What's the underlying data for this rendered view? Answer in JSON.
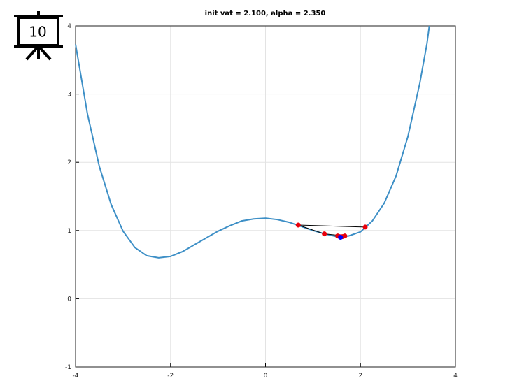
{
  "badge": "10",
  "chart_data": {
    "type": "line",
    "title": "init vat = 2.100, alpha = 2.350",
    "xlim": [
      -4,
      4
    ],
    "ylim": [
      -1,
      4
    ],
    "xticks": [
      -4,
      -2,
      0,
      2,
      4
    ],
    "yticks": [
      -1,
      0,
      1,
      2,
      3,
      4
    ],
    "grid": true,
    "series": [
      {
        "color": "#3d8fc6",
        "line": true,
        "x": [
          -4,
          -3.75,
          -3.5,
          -3.25,
          -3,
          -2.75,
          -2.5,
          -2.25,
          -2,
          -1.75,
          -1.5,
          -1.25,
          -1,
          -0.75,
          -0.5,
          -0.25,
          0,
          0.25,
          0.5,
          0.75,
          1,
          1.25,
          1.5,
          1.75,
          2,
          2.25,
          2.5,
          2.75,
          3,
          3.25,
          3.4,
          3.45
        ],
        "values": [
          3.73,
          2.71,
          1.94,
          1.38,
          0.99,
          0.75,
          0.63,
          0.6,
          0.62,
          0.69,
          0.79,
          0.89,
          0.99,
          1.07,
          1.14,
          1.17,
          1.18,
          1.16,
          1.12,
          1.06,
          1.0,
          0.95,
          0.91,
          0.92,
          0.98,
          1.14,
          1.4,
          1.8,
          2.38,
          3.16,
          3.74,
          4.0
        ]
      },
      {
        "color": "#000000",
        "line": true,
        "marker_color": "#e8000b",
        "x": [
          2.1,
          0.69,
          1.24,
          1.67,
          1.52,
          1.62,
          1.56
        ],
        "values": [
          1.05,
          1.08,
          0.95,
          0.92,
          0.92,
          0.91,
          0.91
        ]
      },
      {
        "color": "#0000ff",
        "line": false,
        "marker_color": "#0000ff",
        "x": [
          1.58
        ],
        "values": [
          0.9
        ]
      }
    ]
  }
}
